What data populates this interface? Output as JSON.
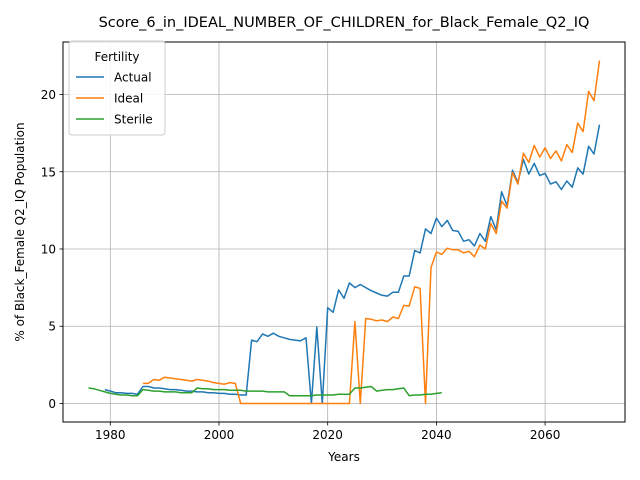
{
  "chart_data": {
    "type": "line",
    "title": "Score_6_in_IDEAL_NUMBER_OF_CHILDREN_for_Black_Female_Q2_IQ",
    "xlabel": "Years",
    "ylabel": "% of Black_Female Q2_IQ Population",
    "xlim": [
      1971.3,
      2074.7
    ],
    "ylim": [
      -1.2,
      23.4
    ],
    "xticks": [
      1980,
      2000,
      2020,
      2040,
      2060
    ],
    "xtick_labels": [
      "1980",
      "2000",
      "2020",
      "2040",
      "2060"
    ],
    "yticks": [
      0,
      5,
      10,
      15,
      20
    ],
    "ytick_labels": [
      "0",
      "5",
      "10",
      "15",
      "20"
    ],
    "grid": true,
    "legend": {
      "title": "Fertility",
      "position": "top-left"
    },
    "series": [
      {
        "name": "Actual",
        "color": "#1f77b4",
        "x": [
          1979,
          1980,
          1981,
          1982,
          1983,
          1984,
          1985,
          1986,
          1987,
          1988,
          1989,
          1990,
          1991,
          1992,
          1993,
          1994,
          1995,
          1996,
          1997,
          1998,
          1999,
          2000,
          2001,
          2002,
          2003,
          2004,
          2005,
          2006,
          2007,
          2008,
          2009,
          2010,
          2011,
          2012,
          2013,
          2014,
          2015,
          2016,
          2017,
          2018,
          2019,
          2020,
          2021,
          2022,
          2023,
          2024,
          2025,
          2026,
          2027,
          2028,
          2029,
          2030,
          2031,
          2032,
          2033,
          2034,
          2035,
          2036,
          2037,
          2038,
          2039,
          2040,
          2041,
          2042,
          2043,
          2044,
          2045,
          2046,
          2047,
          2048,
          2049,
          2050,
          2051,
          2052,
          2053,
          2054,
          2055,
          2056,
          2057,
          2058,
          2059,
          2060,
          2061,
          2062,
          2063,
          2064,
          2065,
          2066,
          2067,
          2068,
          2069,
          2070
        ],
        "values": [
          0.9,
          0.8,
          0.7,
          0.7,
          0.65,
          0.65,
          0.6,
          1.1,
          1.1,
          1.0,
          1.0,
          0.95,
          0.9,
          0.9,
          0.85,
          0.8,
          0.8,
          0.75,
          0.75,
          0.7,
          0.7,
          0.65,
          0.65,
          0.6,
          0.6,
          0.55,
          0.55,
          4.1,
          4.0,
          4.5,
          4.35,
          4.55,
          4.35,
          4.25,
          4.15,
          4.1,
          4.05,
          4.25,
          0.0,
          4.95,
          0.0,
          6.2,
          5.9,
          7.35,
          6.8,
          7.8,
          7.5,
          7.7,
          7.5,
          7.3,
          7.15,
          7.0,
          6.95,
          7.2,
          7.2,
          8.25,
          8.25,
          9.9,
          9.75,
          11.3,
          11.0,
          12.0,
          11.45,
          11.85,
          11.2,
          11.15,
          10.5,
          10.6,
          10.2,
          11.0,
          10.5,
          12.1,
          11.25,
          13.7,
          12.8,
          15.1,
          14.3,
          15.8,
          14.85,
          15.55,
          14.75,
          14.9,
          14.2,
          14.35,
          13.85,
          14.4,
          14.0,
          15.25,
          14.85,
          16.65,
          16.15,
          18.05
        ]
      },
      {
        "name": "Ideal",
        "color": "#ff7f0e",
        "x": [
          1986,
          1987,
          1988,
          1989,
          1990,
          1991,
          1992,
          1993,
          1994,
          1995,
          1996,
          1997,
          1998,
          1999,
          2000,
          2001,
          2002,
          2003,
          2004,
          2005,
          2006,
          2007,
          2008,
          2009,
          2010,
          2011,
          2012,
          2013,
          2014,
          2015,
          2016,
          2017,
          2018,
          2019,
          2020,
          2021,
          2022,
          2023,
          2024,
          2025,
          2026,
          2027,
          2028,
          2029,
          2030,
          2031,
          2032,
          2033,
          2034,
          2035,
          2036,
          2037,
          2038,
          2039,
          2040,
          2041,
          2042,
          2043,
          2044,
          2045,
          2046,
          2047,
          2048,
          2049,
          2050,
          2051,
          2052,
          2053,
          2054,
          2055,
          2056,
          2057,
          2058,
          2059,
          2060,
          2061,
          2062,
          2063,
          2064,
          2065,
          2066,
          2067,
          2068,
          2069,
          2070
        ],
        "values": [
          1.3,
          1.3,
          1.55,
          1.5,
          1.7,
          1.65,
          1.6,
          1.55,
          1.5,
          1.45,
          1.55,
          1.5,
          1.45,
          1.35,
          1.3,
          1.25,
          1.35,
          1.3,
          0.0,
          0.0,
          0.0,
          0.0,
          0.0,
          0.0,
          0.0,
          0.0,
          0.0,
          0.0,
          0.0,
          0.0,
          0.0,
          0.0,
          0.0,
          0.0,
          0.0,
          0.0,
          0.0,
          0.0,
          0.0,
          5.3,
          0.0,
          5.5,
          5.45,
          5.35,
          5.4,
          5.3,
          5.6,
          5.5,
          6.35,
          6.3,
          7.55,
          7.45,
          0.0,
          8.8,
          9.8,
          9.65,
          10.05,
          9.95,
          9.95,
          9.75,
          9.85,
          9.5,
          10.25,
          10.0,
          11.65,
          11.0,
          13.1,
          12.65,
          14.95,
          14.2,
          16.2,
          15.6,
          16.7,
          15.95,
          16.55,
          15.85,
          16.35,
          15.7,
          16.75,
          16.25,
          18.15,
          17.6,
          20.2,
          19.6,
          22.2
        ]
      },
      {
        "name": "Sterile",
        "color": "#2ca02c",
        "x": [
          1976,
          1977,
          1978,
          1979,
          1980,
          1981,
          1982,
          1983,
          1984,
          1985,
          1986,
          1987,
          1988,
          1989,
          1990,
          1991,
          1992,
          1993,
          1994,
          1995,
          1996,
          1997,
          1998,
          1999,
          2000,
          2001,
          2002,
          2003,
          2004,
          2005,
          2006,
          2007,
          2008,
          2009,
          2010,
          2011,
          2012,
          2013,
          2014,
          2015,
          2016,
          2017,
          2018,
          2019,
          2020,
          2021,
          2022,
          2023,
          2024,
          2025,
          2026,
          2027,
          2028,
          2029,
          2030,
          2031,
          2032,
          2033,
          2034,
          2035,
          2036,
          2037,
          2038,
          2039,
          2040,
          2041
        ],
        "values": [
          1.0,
          0.95,
          0.85,
          0.75,
          0.65,
          0.6,
          0.55,
          0.55,
          0.5,
          0.5,
          0.9,
          0.85,
          0.8,
          0.8,
          0.75,
          0.75,
          0.75,
          0.7,
          0.7,
          0.7,
          1.0,
          0.95,
          0.95,
          0.9,
          0.9,
          0.9,
          0.85,
          0.85,
          0.85,
          0.8,
          0.8,
          0.8,
          0.8,
          0.75,
          0.75,
          0.75,
          0.75,
          0.5,
          0.5,
          0.5,
          0.5,
          0.5,
          0.55,
          0.55,
          0.55,
          0.55,
          0.6,
          0.6,
          0.6,
          1.0,
          1.0,
          1.05,
          1.1,
          0.8,
          0.85,
          0.9,
          0.9,
          0.95,
          1.0,
          0.5,
          0.55,
          0.55,
          0.6,
          0.6,
          0.65,
          0.7
        ]
      }
    ]
  }
}
